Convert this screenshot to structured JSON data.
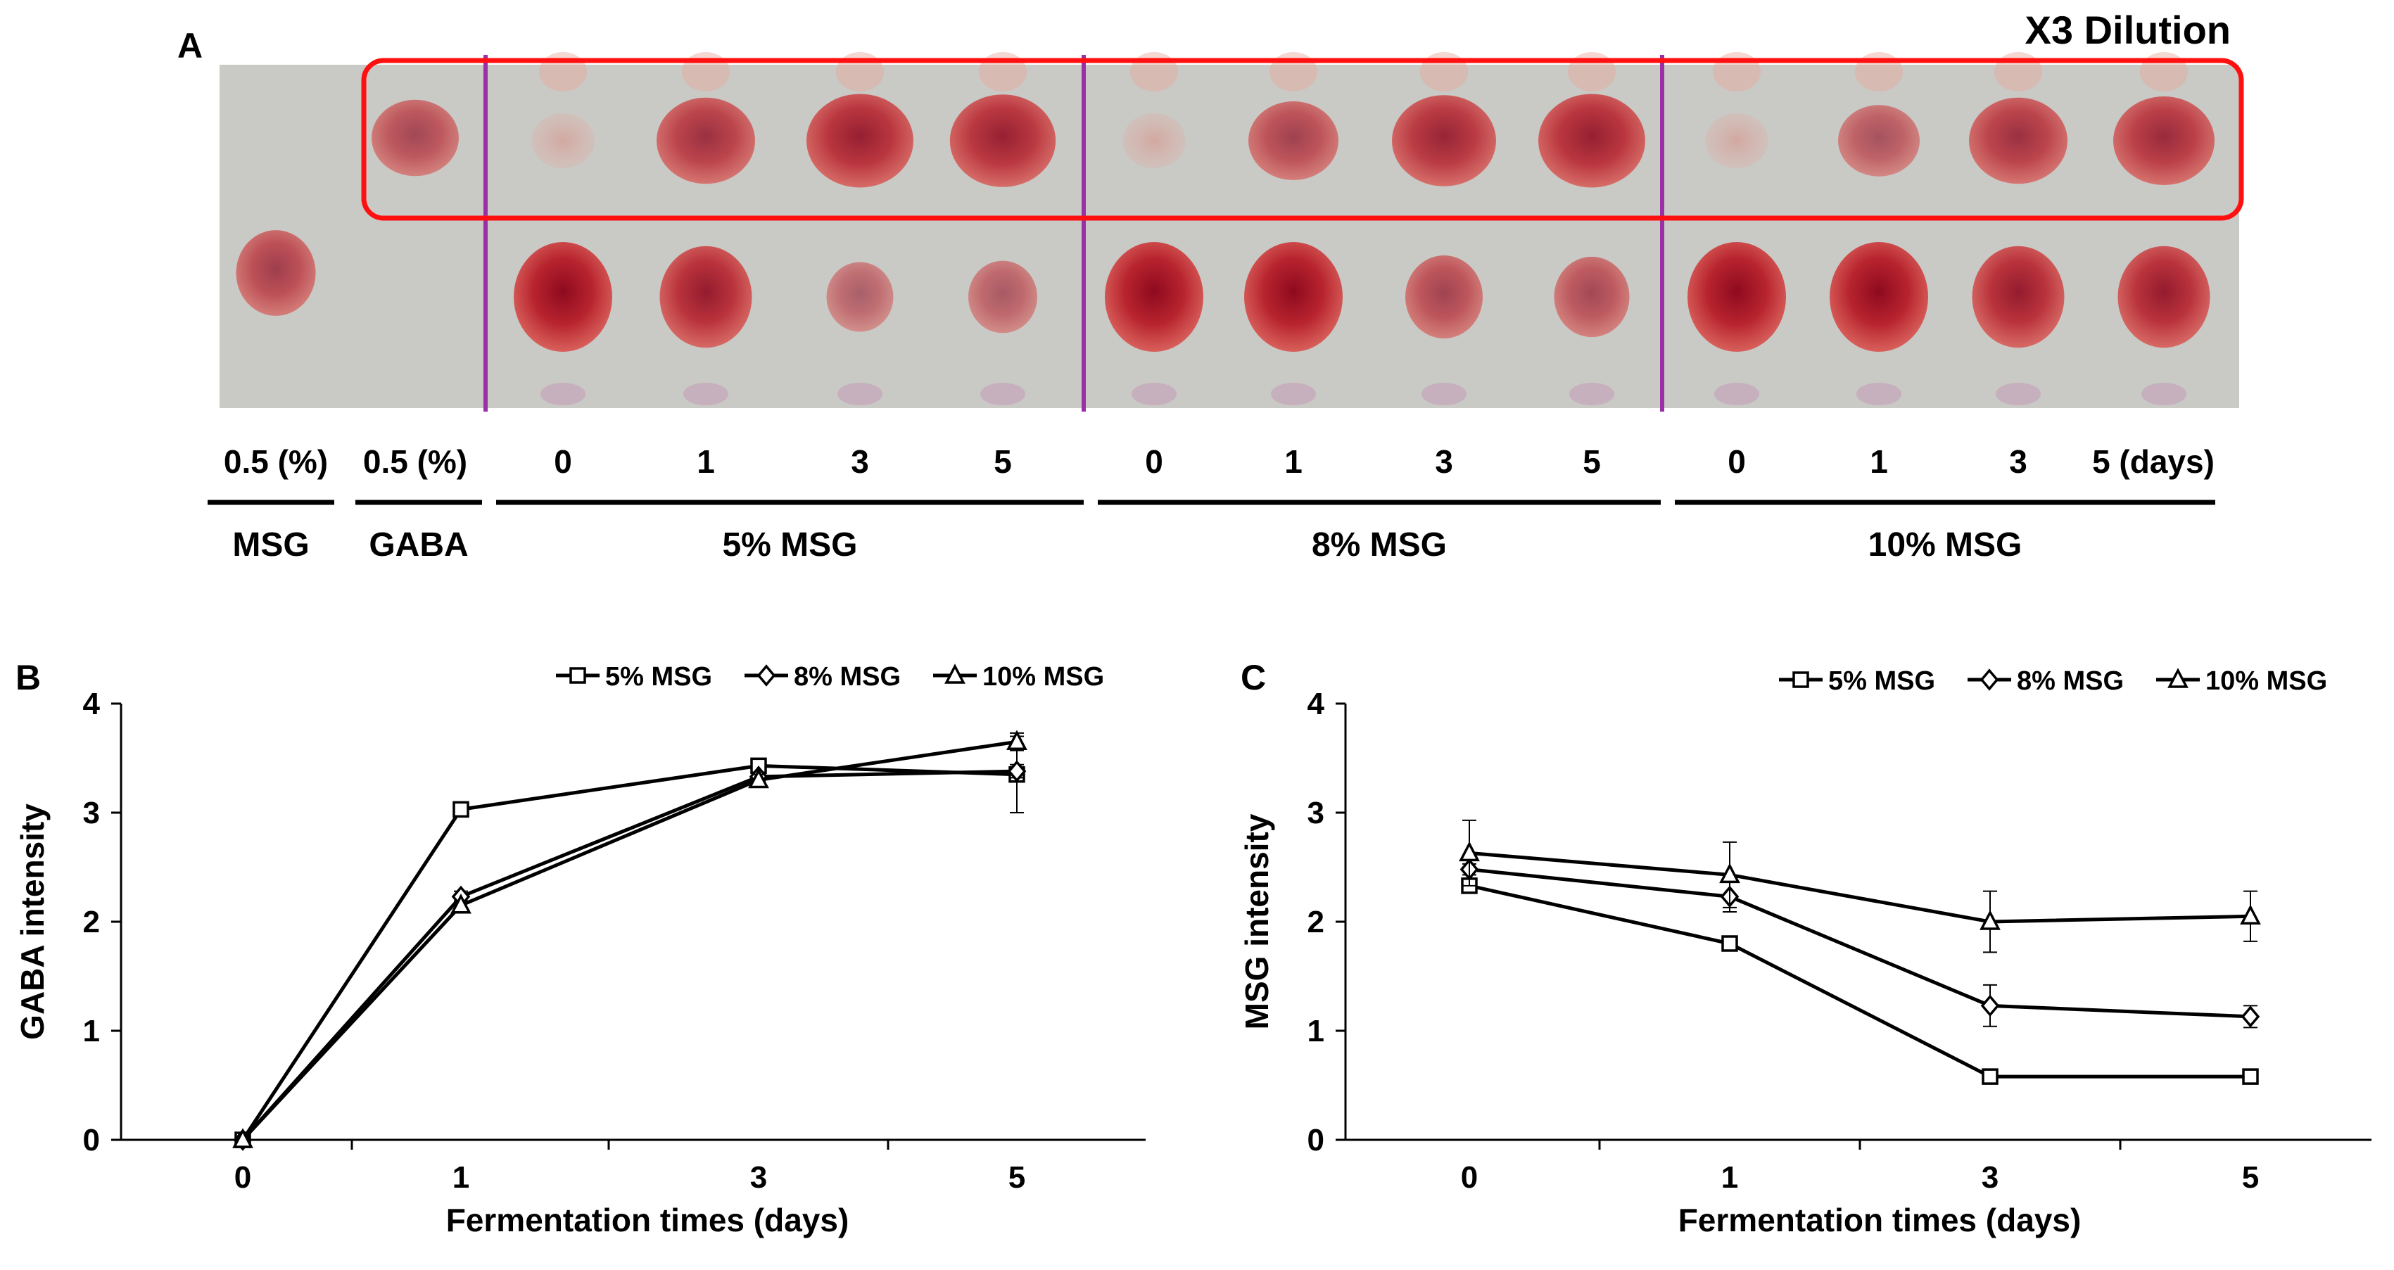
{
  "panel_a": {
    "label": "A",
    "dilution_note": "X3 Dilution",
    "lanes": [
      {
        "label": "0.5 (%)",
        "gaba": 0.0,
        "msg": 0.55
      },
      {
        "label": "0.5 (%)",
        "gaba": 0.55,
        "msg": 0.0
      },
      {
        "label": "0",
        "gaba": 0.12,
        "msg": 1.0
      },
      {
        "label": "1",
        "gaba": 0.75,
        "msg": 0.85
      },
      {
        "label": "3",
        "gaba": 0.9,
        "msg": 0.25
      },
      {
        "label": "5",
        "gaba": 0.88,
        "msg": 0.3
      },
      {
        "label": "0",
        "gaba": 0.12,
        "msg": 1.0
      },
      {
        "label": "1",
        "gaba": 0.6,
        "msg": 1.0
      },
      {
        "label": "3",
        "gaba": 0.85,
        "msg": 0.5
      },
      {
        "label": "5",
        "gaba": 0.9,
        "msg": 0.45
      },
      {
        "label": "0",
        "gaba": 0.12,
        "msg": 1.0
      },
      {
        "label": "1",
        "gaba": 0.45,
        "msg": 1.0
      },
      {
        "label": "3",
        "gaba": 0.75,
        "msg": 0.85
      },
      {
        "label": "5 (days)",
        "gaba": 0.8,
        "msg": 0.85
      }
    ],
    "groups": [
      {
        "label": "MSG",
        "first_lane": 0,
        "last_lane": 0
      },
      {
        "label": "GABA",
        "first_lane": 1,
        "last_lane": 1
      },
      {
        "label": "5% MSG",
        "first_lane": 2,
        "last_lane": 5
      },
      {
        "label": "8% MSG",
        "first_lane": 6,
        "last_lane": 9
      },
      {
        "label": "10% MSG",
        "first_lane": 10,
        "last_lane": 13
      }
    ]
  },
  "chart_data": [
    {
      "panel": "B",
      "type": "line",
      "title": "",
      "xlabel": "Fermentation times (days)",
      "ylabel": "GABA intensity",
      "categories": [
        "0",
        "1",
        "3",
        "5"
      ],
      "ylim": [
        0,
        4
      ],
      "yticks": [
        0,
        1,
        2,
        3,
        4
      ],
      "legend_position": "top-right",
      "series": [
        {
          "name": "5% MSG",
          "marker": "square",
          "values": [
            0,
            3.03,
            3.43,
            3.35
          ],
          "errors": [
            0,
            0.03,
            0.04,
            0.35
          ]
        },
        {
          "name": "8% MSG",
          "marker": "diamond",
          "values": [
            0,
            2.23,
            3.33,
            3.38
          ],
          "errors": [
            0,
            0.05,
            0.04,
            0.06
          ]
        },
        {
          "name": "10% MSG",
          "marker": "triangle",
          "values": [
            0,
            2.15,
            3.3,
            3.65
          ],
          "errors": [
            0,
            0.04,
            0.05,
            0.08
          ]
        }
      ]
    },
    {
      "panel": "C",
      "type": "line",
      "title": "",
      "xlabel": "Fermentation times (days)",
      "ylabel": "MSG intensity",
      "categories": [
        "0",
        "1",
        "3",
        "5"
      ],
      "ylim": [
        0,
        4
      ],
      "yticks": [
        0,
        1,
        2,
        3,
        4
      ],
      "legend_position": "top-right",
      "series": [
        {
          "name": "5% MSG",
          "marker": "square",
          "values": [
            2.33,
            1.8,
            0.58,
            0.58
          ],
          "errors": [
            0.03,
            0.05,
            0.03,
            0.06
          ]
        },
        {
          "name": "8% MSG",
          "marker": "diamond",
          "values": [
            2.48,
            2.23,
            1.23,
            1.13
          ],
          "errors": [
            0.05,
            0.14,
            0.19,
            0.1
          ]
        },
        {
          "name": "10% MSG",
          "marker": "triangle",
          "values": [
            2.63,
            2.43,
            2.0,
            2.05
          ],
          "errors": [
            0.3,
            0.3,
            0.28,
            0.23
          ]
        }
      ]
    }
  ]
}
